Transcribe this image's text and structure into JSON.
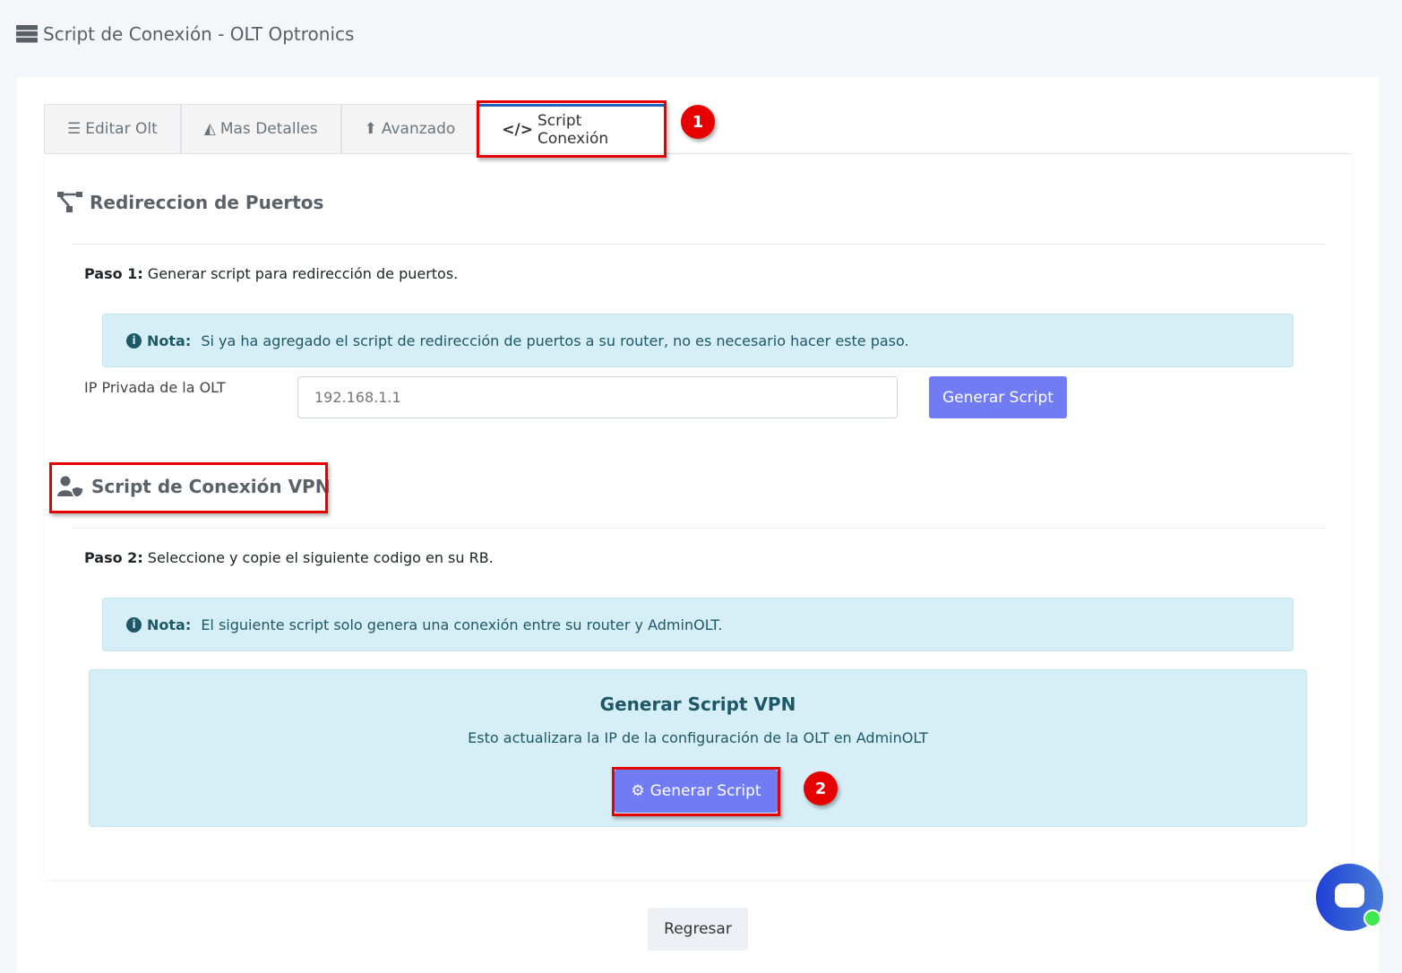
{
  "header": {
    "title": "Script de Conexión - OLT Optronics",
    "icon": "server-icon"
  },
  "tabs": [
    {
      "label": "Editar Olt",
      "icon": "list-icon"
    },
    {
      "label": "Mas Detalles",
      "icon": "area-chart-icon"
    },
    {
      "label": "Avanzado",
      "icon": "arrow-circle-up-icon"
    },
    {
      "label": "Script Conexión",
      "icon": "code-icon",
      "active": true
    }
  ],
  "annotations": {
    "one": "1",
    "two": "2"
  },
  "ports": {
    "title": "Redireccion de Puertos",
    "step_bold": "Paso 1:",
    "step_text": " Generar script para redirección de puertos.",
    "note_bold": "Nota:",
    "note_text": " Si ya ha agregado el script de redirección de puertos a su router, no es necesario hacer este paso.",
    "ip_label": "IP Privada de la OLT",
    "ip_placeholder": "192.168.1.1",
    "button": "Generar Script"
  },
  "vpn": {
    "title": "Script de Conexión VPN",
    "step_bold": "Paso 2:",
    "step_text": " Seleccione y copie el siguiente codigo en su RB.",
    "note_bold": "Nota:",
    "note_text": " El siguiente script solo genera una conexión entre su router y AdminOLT.",
    "box_title": "Generar Script VPN",
    "box_text": "Esto actualizara la IP de la configuración de la OLT en AdminOLT",
    "button": "Generar Script"
  },
  "footer": {
    "back": "Regresar"
  },
  "colors": {
    "primary": "#717cf3",
    "alert_bg": "#d6eef5",
    "annotation": "#e60000",
    "tab_active": "#1f5fbf"
  }
}
